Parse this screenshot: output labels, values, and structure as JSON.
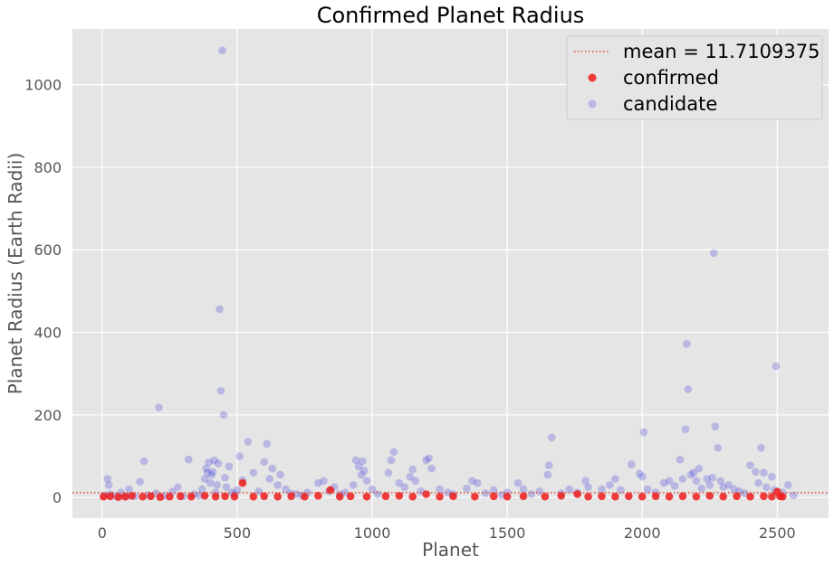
{
  "chart_data": {
    "type": "scatter",
    "title": "Confirmed Planet Radius",
    "xlabel": "Planet",
    "ylabel": "Planet Radius (Earth Radii)",
    "xlim": [
      -110,
      2690
    ],
    "ylim": [
      -50,
      1135
    ],
    "x_ticks": [
      0,
      500,
      1000,
      1500,
      2000,
      2500
    ],
    "y_ticks": [
      0,
      200,
      400,
      600,
      800,
      1000
    ],
    "x_tick_labels": [
      "0",
      "500",
      "1000",
      "1500",
      "2000",
      "2500"
    ],
    "y_tick_labels": [
      "0",
      "200",
      "400",
      "600",
      "800",
      "1000"
    ],
    "grid": true,
    "legend_position": "top-right",
    "mean_line": {
      "label": "mean = 11.7109375",
      "value": 11.7109375,
      "color": "#e24a33",
      "style": "dotted"
    },
    "series": [
      {
        "name": "confirmed",
        "color": "#ee1c1c",
        "points": [
          [
            5,
            2
          ],
          [
            30,
            3
          ],
          [
            60,
            1
          ],
          [
            85,
            2
          ],
          [
            110,
            4
          ],
          [
            150,
            2
          ],
          [
            180,
            3
          ],
          [
            215,
            1
          ],
          [
            250,
            2
          ],
          [
            290,
            3
          ],
          [
            330,
            2
          ],
          [
            380,
            4
          ],
          [
            420,
            2
          ],
          [
            455,
            3
          ],
          [
            490,
            2
          ],
          [
            520,
            35
          ],
          [
            560,
            2
          ],
          [
            600,
            3
          ],
          [
            650,
            2
          ],
          [
            700,
            3
          ],
          [
            750,
            2
          ],
          [
            800,
            4
          ],
          [
            845,
            18
          ],
          [
            880,
            2
          ],
          [
            920,
            3
          ],
          [
            980,
            2
          ],
          [
            1050,
            3
          ],
          [
            1100,
            4
          ],
          [
            1150,
            2
          ],
          [
            1200,
            8
          ],
          [
            1250,
            2
          ],
          [
            1300,
            3
          ],
          [
            1380,
            2
          ],
          [
            1450,
            3
          ],
          [
            1500,
            2
          ],
          [
            1560,
            3
          ],
          [
            1640,
            2
          ],
          [
            1700,
            4
          ],
          [
            1760,
            8
          ],
          [
            1800,
            2
          ],
          [
            1850,
            3
          ],
          [
            1900,
            2
          ],
          [
            1950,
            3
          ],
          [
            2000,
            2
          ],
          [
            2050,
            3
          ],
          [
            2100,
            2
          ],
          [
            2150,
            3
          ],
          [
            2200,
            2
          ],
          [
            2250,
            4
          ],
          [
            2300,
            2
          ],
          [
            2350,
            3
          ],
          [
            2400,
            2
          ],
          [
            2450,
            3
          ],
          [
            2480,
            2
          ],
          [
            2500,
            14
          ],
          [
            2510,
            3
          ],
          [
            2520,
            2
          ]
        ]
      },
      {
        "name": "candidate",
        "color": "#4b4bdc",
        "points": [
          [
            10,
            5
          ],
          [
            20,
            45
          ],
          [
            25,
            30
          ],
          [
            30,
            8
          ],
          [
            50,
            3
          ],
          [
            70,
            12
          ],
          [
            90,
            2
          ],
          [
            100,
            20
          ],
          [
            120,
            3
          ],
          [
            140,
            38
          ],
          [
            155,
            88
          ],
          [
            170,
            6
          ],
          [
            200,
            10
          ],
          [
            210,
            218
          ],
          [
            230,
            4
          ],
          [
            260,
            14
          ],
          [
            280,
            25
          ],
          [
            300,
            3
          ],
          [
            320,
            92
          ],
          [
            340,
            8
          ],
          [
            360,
            5
          ],
          [
            370,
            20
          ],
          [
            380,
            45
          ],
          [
            385,
            70
          ],
          [
            390,
            60
          ],
          [
            395,
            85
          ],
          [
            400,
            35
          ],
          [
            405,
            55
          ],
          [
            410,
            62
          ],
          [
            415,
            90
          ],
          [
            420,
            12
          ],
          [
            425,
            30
          ],
          [
            430,
            82
          ],
          [
            435,
            456
          ],
          [
            440,
            258
          ],
          [
            445,
            1083
          ],
          [
            450,
            200
          ],
          [
            455,
            48
          ],
          [
            460,
            25
          ],
          [
            470,
            75
          ],
          [
            480,
            12
          ],
          [
            490,
            8
          ],
          [
            500,
            18
          ],
          [
            510,
            100
          ],
          [
            520,
            42
          ],
          [
            540,
            135
          ],
          [
            560,
            60
          ],
          [
            580,
            15
          ],
          [
            600,
            86
          ],
          [
            610,
            130
          ],
          [
            620,
            45
          ],
          [
            630,
            70
          ],
          [
            650,
            30
          ],
          [
            660,
            55
          ],
          [
            680,
            20
          ],
          [
            700,
            10
          ],
          [
            720,
            8
          ],
          [
            740,
            5
          ],
          [
            760,
            12
          ],
          [
            800,
            35
          ],
          [
            820,
            40
          ],
          [
            840,
            15
          ],
          [
            860,
            25
          ],
          [
            880,
            8
          ],
          [
            900,
            12
          ],
          [
            930,
            30
          ],
          [
            940,
            90
          ],
          [
            950,
            75
          ],
          [
            960,
            55
          ],
          [
            965,
            88
          ],
          [
            970,
            65
          ],
          [
            980,
            40
          ],
          [
            1000,
            20
          ],
          [
            1020,
            8
          ],
          [
            1060,
            60
          ],
          [
            1070,
            90
          ],
          [
            1080,
            110
          ],
          [
            1100,
            35
          ],
          [
            1120,
            25
          ],
          [
            1140,
            50
          ],
          [
            1150,
            68
          ],
          [
            1160,
            40
          ],
          [
            1180,
            15
          ],
          [
            1200,
            90
          ],
          [
            1210,
            95
          ],
          [
            1220,
            70
          ],
          [
            1250,
            20
          ],
          [
            1280,
            12
          ],
          [
            1300,
            8
          ],
          [
            1350,
            22
          ],
          [
            1370,
            40
          ],
          [
            1390,
            35
          ],
          [
            1420,
            10
          ],
          [
            1450,
            18
          ],
          [
            1480,
            6
          ],
          [
            1500,
            12
          ],
          [
            1540,
            35
          ],
          [
            1560,
            20
          ],
          [
            1590,
            8
          ],
          [
            1620,
            15
          ],
          [
            1650,
            55
          ],
          [
            1655,
            78
          ],
          [
            1665,
            145
          ],
          [
            1700,
            10
          ],
          [
            1730,
            20
          ],
          [
            1760,
            12
          ],
          [
            1790,
            40
          ],
          [
            1800,
            25
          ],
          [
            1850,
            20
          ],
          [
            1880,
            30
          ],
          [
            1900,
            45
          ],
          [
            1920,
            18
          ],
          [
            1960,
            80
          ],
          [
            1990,
            58
          ],
          [
            2000,
            50
          ],
          [
            2005,
            158
          ],
          [
            2020,
            20
          ],
          [
            2050,
            12
          ],
          [
            2080,
            35
          ],
          [
            2100,
            40
          ],
          [
            2120,
            28
          ],
          [
            2140,
            92
          ],
          [
            2150,
            45
          ],
          [
            2160,
            165
          ],
          [
            2165,
            372
          ],
          [
            2170,
            262
          ],
          [
            2180,
            55
          ],
          [
            2190,
            60
          ],
          [
            2200,
            40
          ],
          [
            2210,
            70
          ],
          [
            2220,
            22
          ],
          [
            2240,
            45
          ],
          [
            2250,
            30
          ],
          [
            2260,
            48
          ],
          [
            2265,
            592
          ],
          [
            2270,
            172
          ],
          [
            2280,
            120
          ],
          [
            2290,
            40
          ],
          [
            2300,
            25
          ],
          [
            2320,
            30
          ],
          [
            2340,
            20
          ],
          [
            2360,
            15
          ],
          [
            2380,
            10
          ],
          [
            2400,
            78
          ],
          [
            2420,
            62
          ],
          [
            2430,
            35
          ],
          [
            2440,
            120
          ],
          [
            2450,
            60
          ],
          [
            2460,
            25
          ],
          [
            2480,
            50
          ],
          [
            2490,
            18
          ],
          [
            2495,
            318
          ],
          [
            2520,
            12
          ],
          [
            2540,
            30
          ],
          [
            2560,
            5
          ]
        ]
      }
    ]
  }
}
